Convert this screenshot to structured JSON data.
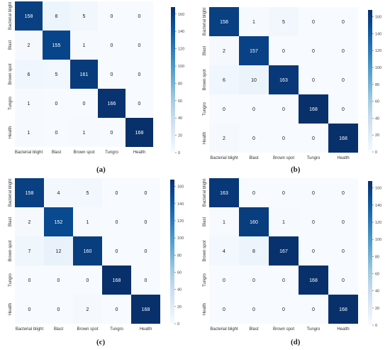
{
  "figure": {
    "captions": [
      "(a)",
      "(b)",
      "(c)",
      "(d)"
    ]
  },
  "colors": {
    "low": "#f7fbff",
    "high": "#08306b",
    "text_light": "#ffffff",
    "text_dark": "#1a1a1a"
  },
  "chart_data": [
    {
      "type": "heatmap",
      "title": "",
      "xlabel": "",
      "ylabel": "",
      "x_categories": [
        "Bacterial blight",
        "Blast",
        "Brown spot",
        "Tungro",
        "Health"
      ],
      "y_categories": [
        "Bacterial blight",
        "Blast",
        "Brown spot",
        "Tungro",
        "Health"
      ],
      "values": [
        [
          158,
          8,
          5,
          0,
          0
        ],
        [
          2,
          155,
          1,
          0,
          0
        ],
        [
          6,
          5,
          161,
          0,
          0
        ],
        [
          1,
          0,
          0,
          166,
          0
        ],
        [
          1,
          0,
          1,
          0,
          168
        ]
      ],
      "colorbar": {
        "min": 0,
        "max": 168,
        "ticks": [
          0,
          20,
          40,
          60,
          80,
          100,
          120,
          140,
          160
        ]
      }
    },
    {
      "type": "heatmap",
      "title": "",
      "xlabel": "",
      "ylabel": "",
      "x_categories": [
        "Bacterial blight",
        "Blast",
        "Brown spot",
        "Tungro",
        "Health"
      ],
      "y_categories": [
        "Bacterial blight",
        "Blast",
        "Brown spot",
        "Tungro",
        "Health"
      ],
      "values": [
        [
          158,
          1,
          5,
          0,
          0
        ],
        [
          2,
          157,
          0,
          0,
          0
        ],
        [
          6,
          10,
          163,
          0,
          0
        ],
        [
          0,
          0,
          0,
          168,
          0
        ],
        [
          2,
          0,
          0,
          0,
          168
        ]
      ],
      "colorbar": {
        "min": 0,
        "max": 168,
        "ticks": [
          0,
          20,
          40,
          60,
          80,
          100,
          120,
          140,
          160
        ]
      }
    },
    {
      "type": "heatmap",
      "title": "",
      "xlabel": "",
      "ylabel": "",
      "x_categories": [
        "Bacterial blight",
        "Blast",
        "Brown spot",
        "Tungro",
        "Health"
      ],
      "y_categories": [
        "Bacterial blight",
        "Blast",
        "Brown spot",
        "Tungro",
        "Health"
      ],
      "values": [
        [
          158,
          4,
          5,
          0,
          0
        ],
        [
          2,
          152,
          1,
          0,
          0
        ],
        [
          7,
          12,
          160,
          0,
          0
        ],
        [
          0,
          0,
          0,
          168,
          0
        ],
        [
          0,
          0,
          2,
          0,
          168
        ]
      ],
      "colorbar": {
        "min": 0,
        "max": 168,
        "ticks": [
          0,
          20,
          40,
          60,
          80,
          100,
          120,
          140,
          160
        ]
      }
    },
    {
      "type": "heatmap",
      "title": "",
      "xlabel": "",
      "ylabel": "",
      "x_categories": [
        "Bacterial blight",
        "Blast",
        "Brown spot",
        "Tungro",
        "Health"
      ],
      "y_categories": [
        "Bacterial blight",
        "Blast",
        "Brown spot",
        "Tungro",
        "Health"
      ],
      "values": [
        [
          163,
          0,
          0,
          0,
          0
        ],
        [
          1,
          160,
          1,
          0,
          0
        ],
        [
          4,
          8,
          167,
          0,
          0
        ],
        [
          0,
          0,
          0,
          168,
          0
        ],
        [
          0,
          0,
          0,
          0,
          168
        ]
      ],
      "colorbar": {
        "min": 0,
        "max": 168,
        "ticks": [
          0,
          20,
          40,
          60,
          80,
          100,
          120,
          140,
          160
        ]
      }
    }
  ]
}
